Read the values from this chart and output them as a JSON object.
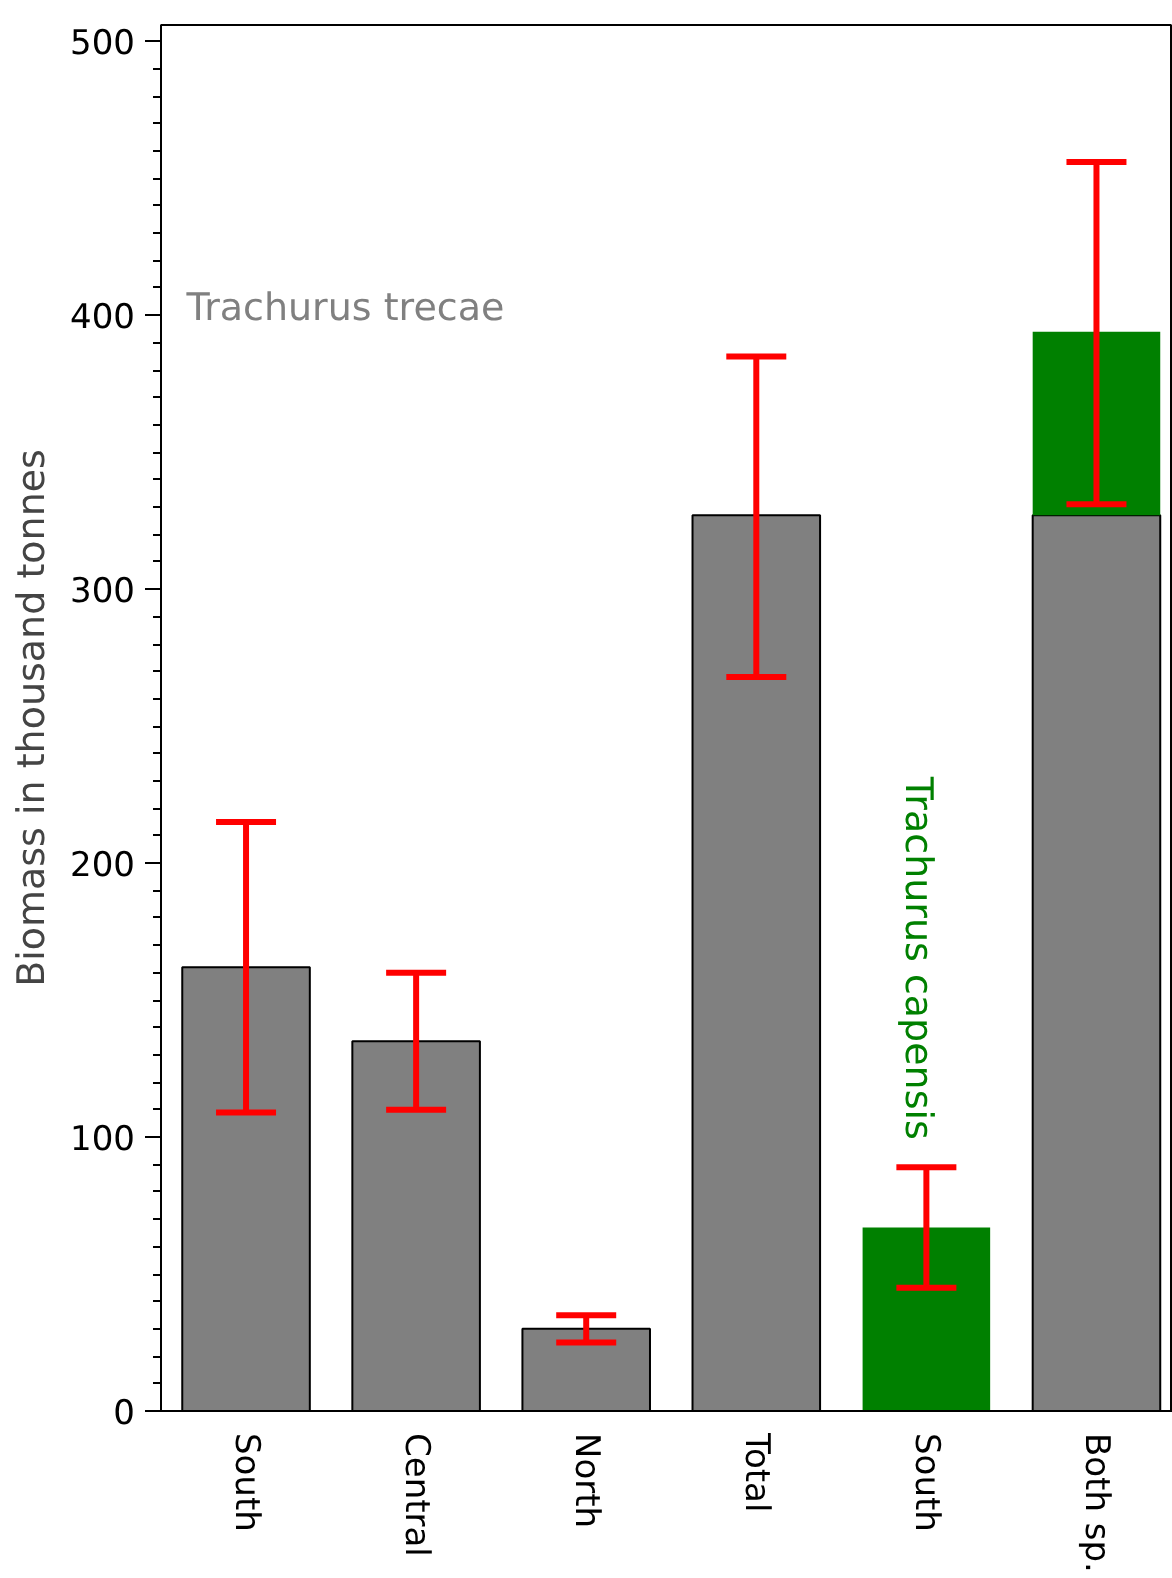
{
  "chart_data": {
    "type": "bar",
    "stacked": true,
    "ylabel": "Biomass in thousand tonnes",
    "categories": [
      "South",
      "Central",
      "North",
      "Total",
      "South",
      "Both sp."
    ],
    "series": [
      {
        "name": "Trachurus trecae",
        "color": "#808080",
        "values": [
          162,
          135,
          30,
          327,
          null,
          327
        ],
        "errors": [
          [
            109,
            215
          ],
          [
            110,
            160
          ],
          [
            25,
            35
          ],
          [
            268,
            385
          ],
          null,
          null
        ]
      },
      {
        "name": "Trachurus capensis",
        "color": "#008000",
        "values": [
          null,
          null,
          null,
          null,
          67,
          67
        ],
        "errors": [
          null,
          null,
          null,
          null,
          [
            45,
            89
          ],
          [
            331,
            456
          ]
        ]
      }
    ],
    "ylim": [
      0,
      506
    ],
    "yticks": [
      0,
      100,
      200,
      300,
      400,
      500
    ],
    "grid": false
  }
}
